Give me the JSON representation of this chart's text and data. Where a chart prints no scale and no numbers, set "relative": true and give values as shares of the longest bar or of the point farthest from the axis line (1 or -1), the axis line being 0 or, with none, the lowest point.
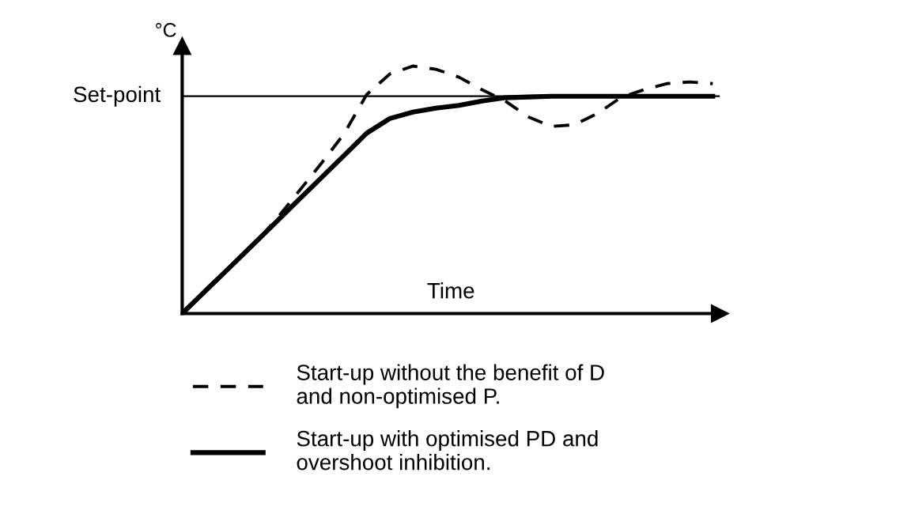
{
  "chart_data": {
    "type": "line",
    "relative": true,
    "xlabel": "Time",
    "ylabel": "°C",
    "categories": [
      null,
      null,
      null,
      null,
      null,
      null,
      null,
      null,
      null,
      null,
      null,
      null,
      null,
      null,
      null,
      null,
      null,
      null,
      null,
      null,
      null,
      null,
      null,
      null
    ],
    "series": [
      {
        "name": "Start-up without the benefit of D\nand non-optimised P.",
        "color": "#000000",
        "line_style": "dashed",
        "values": [
          0,
          0.09,
          0.179,
          0.269,
          0.372,
          0.487,
          0.603,
          0.724,
          0.885,
          0.968,
          1.0,
          0.987,
          0.955,
          0.904,
          0.859,
          0.795,
          0.756,
          0.763,
          0.808,
          0.872,
          0.904,
          0.929,
          0.936,
          0.929
        ]
      },
      {
        "name": "Start-up with optimised PD and\novershoot inhibition.",
        "color": "#000000",
        "line_style": "solid",
        "values": [
          0,
          0.091,
          0.181,
          0.272,
          0.363,
          0.455,
          0.546,
          0.637,
          0.729,
          0.788,
          0.814,
          0.83,
          0.841,
          0.859,
          0.872,
          0.875,
          0.878,
          0.878,
          0.878,
          0.878,
          0.878,
          0.878,
          0.878,
          0.878
        ]
      }
    ],
    "ref_lines": [
      {
        "axis": "y",
        "value": 0.878,
        "label": "Set-point",
        "color": "#000000",
        "line_style": "solid"
      }
    ],
    "legend": "bottom",
    "marker": "none"
  }
}
